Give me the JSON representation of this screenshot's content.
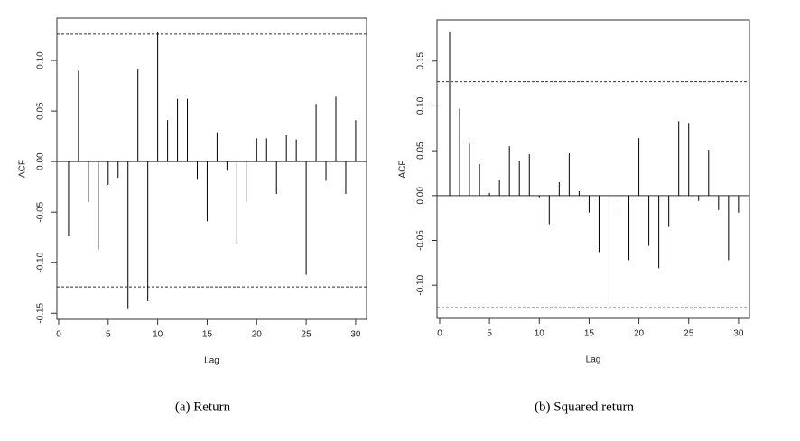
{
  "chart_data": [
    {
      "type": "stem",
      "caption": "(a) Return",
      "xlabel": "Lag",
      "ylabel": "ACF",
      "color": "#000000",
      "x": [
        1,
        2,
        3,
        4,
        5,
        6,
        7,
        8,
        9,
        10,
        11,
        12,
        13,
        14,
        15,
        16,
        17,
        18,
        19,
        20,
        21,
        22,
        23,
        24,
        25,
        26,
        27,
        28,
        29,
        30
      ],
      "values": [
        -0.074,
        0.09,
        -0.04,
        -0.087,
        -0.023,
        -0.016,
        -0.146,
        0.091,
        -0.138,
        0.128,
        0.041,
        0.062,
        0.062,
        -0.018,
        -0.059,
        0.029,
        -0.009,
        -0.08,
        -0.04,
        0.023,
        0.023,
        -0.032,
        0.026,
        0.022,
        -0.112,
        0.057,
        -0.019,
        0.064,
        -0.032,
        0.041
      ],
      "hlines": [
        0.126,
        -0.124
      ],
      "xlim": [
        -0.18,
        31.1
      ],
      "ylim": [
        -0.156,
        0.142
      ],
      "xticks": [
        0,
        5,
        10,
        15,
        20,
        25,
        30
      ],
      "yticks": [
        -0.15,
        {
          "value": -0.1,
          "label": "-0.10"
        },
        -0.05,
        {
          "value": 0,
          "label": "0.00"
        },
        0.05,
        {
          "value": 0.1,
          "label": "0.10"
        }
      ]
    },
    {
      "type": "stem",
      "caption": "(b) Squared return",
      "xlabel": "Lag",
      "ylabel": "ACF",
      "color": "#000000",
      "x": [
        1,
        2,
        3,
        4,
        5,
        6,
        7,
        8,
        9,
        10,
        11,
        12,
        13,
        14,
        15,
        16,
        17,
        18,
        19,
        20,
        21,
        22,
        23,
        24,
        25,
        26,
        27,
        28,
        29,
        30
      ],
      "values": [
        0.183,
        0.097,
        0.058,
        0.035,
        0.003,
        0.017,
        0.055,
        0.038,
        0.046,
        -0.002,
        -0.032,
        0.015,
        0.047,
        0.005,
        -0.019,
        -0.063,
        -0.123,
        -0.023,
        -0.072,
        0.064,
        -0.056,
        -0.081,
        -0.035,
        0.083,
        0.081,
        -0.006,
        0.051,
        -0.016,
        -0.072,
        -0.019
      ],
      "hlines": [
        0.127,
        -0.125
      ],
      "xlim": [
        -0.27,
        31.1
      ],
      "ylim": [
        -0.137,
        0.196
      ],
      "xticks": [
        0,
        5,
        10,
        15,
        20,
        25,
        30
      ],
      "yticks": [
        {
          "value": -0.1,
          "label": "-0.10"
        },
        -0.05,
        {
          "value": 0,
          "label": "0.00"
        },
        0.05,
        {
          "value": 0.1,
          "label": "0.10"
        },
        0.15
      ]
    }
  ]
}
